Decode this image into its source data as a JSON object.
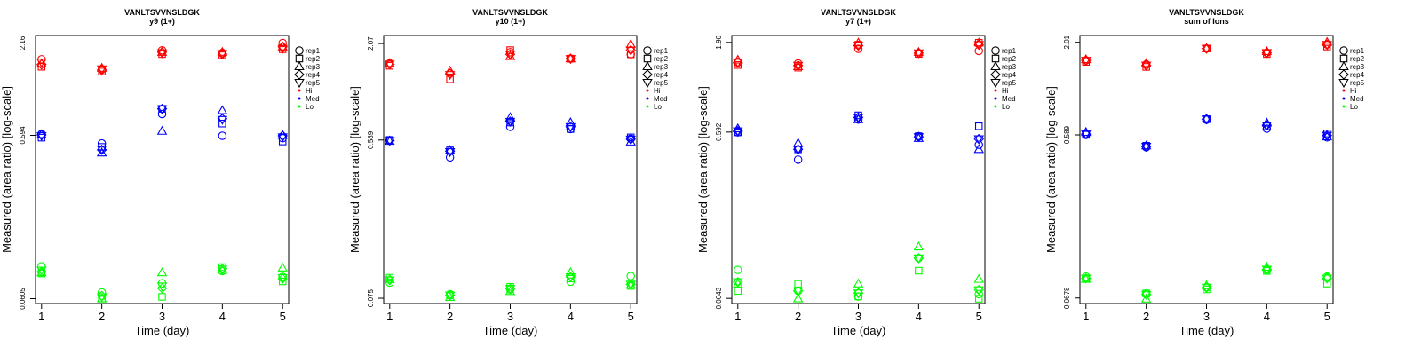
{
  "chart_data": [
    {
      "type": "scatter",
      "title": "VANLTSVVNSLDGK",
      "subtitle": "y9 (1+)",
      "xlabel": "Time (day)",
      "ylabel": "Measured (area ratio) [log-scale]",
      "x": [
        1,
        2,
        3,
        4,
        5
      ],
      "xticks": [
        "1",
        "2",
        "3",
        "4",
        "5"
      ],
      "yticks": [
        {
          "value": 0.0605,
          "label": "0.0605"
        },
        {
          "value": 0.594,
          "label": "0.594"
        },
        {
          "value": 2.16,
          "label": "2.16"
        }
      ],
      "ylim": [
        0.0565,
        2.4
      ],
      "series": [
        {
          "name": "rep1",
          "group": "Hi",
          "values": [
            1.72,
            1.5,
            1.95,
            1.88,
            2.16
          ]
        },
        {
          "name": "rep2",
          "group": "Hi",
          "values": [
            1.55,
            1.45,
            1.85,
            1.82,
            1.98
          ]
        },
        {
          "name": "rep3",
          "group": "Hi",
          "values": [
            1.62,
            1.52,
            1.9,
            1.9,
            2.05
          ]
        },
        {
          "name": "rep4",
          "group": "Hi",
          "values": [
            1.6,
            1.48,
            1.9,
            1.85,
            2.05
          ]
        },
        {
          "name": "rep5",
          "group": "Hi",
          "values": [
            1.65,
            1.5,
            1.88,
            1.86,
            2.0
          ]
        },
        {
          "name": "rep1",
          "group": "Med",
          "values": [
            0.605,
            0.53,
            0.8,
            0.59,
            0.57
          ]
        },
        {
          "name": "rep2",
          "group": "Med",
          "values": [
            0.575,
            0.505,
            0.86,
            0.7,
            0.545
          ]
        },
        {
          "name": "rep3",
          "group": "Med",
          "values": [
            0.6,
            0.465,
            0.63,
            0.84,
            0.595
          ]
        },
        {
          "name": "rep4",
          "group": "Med",
          "values": [
            0.598,
            0.485,
            0.86,
            0.75,
            0.59
          ]
        },
        {
          "name": "rep5",
          "group": "Med",
          "values": [
            0.59,
            0.49,
            0.86,
            0.74,
            0.58
          ]
        },
        {
          "name": "rep1",
          "group": "Lo",
          "values": [
            0.095,
            0.066,
            0.075,
            0.089,
            0.082
          ]
        },
        {
          "name": "rep2",
          "group": "Lo",
          "values": [
            0.086,
            0.0605,
            0.062,
            0.094,
            0.077
          ]
        },
        {
          "name": "rep3",
          "group": "Lo",
          "values": [
            0.087,
            0.0605,
            0.087,
            0.09,
            0.093
          ]
        },
        {
          "name": "rep4",
          "group": "Lo",
          "values": [
            0.088,
            0.063,
            0.07,
            0.092,
            0.08
          ]
        },
        {
          "name": "rep5",
          "group": "Lo",
          "values": [
            0.09,
            0.062,
            0.072,
            0.091,
            0.081
          ]
        }
      ]
    },
    {
      "type": "scatter",
      "title": "VANLTSVVNSLDGK",
      "subtitle": "y10 (1+)",
      "xlabel": "Time (day)",
      "ylabel": "Measured (area ratio) [log-scale]",
      "x": [
        1,
        2,
        3,
        4,
        5
      ],
      "xticks": [
        "1",
        "2",
        "3",
        "4",
        "5"
      ],
      "yticks": [
        {
          "value": 0.075,
          "label": "0.075"
        },
        {
          "value": 0.589,
          "label": "0.589"
        },
        {
          "value": 2.07,
          "label": "2.07"
        }
      ],
      "ylim": [
        0.07,
        2.3
      ],
      "series": [
        {
          "name": "rep1",
          "group": "Hi",
          "values": [
            1.6,
            1.4,
            1.85,
            1.7,
            1.8
          ]
        },
        {
          "name": "rep2",
          "group": "Hi",
          "values": [
            1.55,
            1.3,
            1.9,
            1.7,
            1.8
          ]
        },
        {
          "name": "rep3",
          "group": "Hi",
          "values": [
            1.6,
            1.45,
            1.75,
            1.7,
            2.05
          ]
        },
        {
          "name": "rep4",
          "group": "Hi",
          "values": [
            1.58,
            1.4,
            1.8,
            1.7,
            1.9
          ]
        },
        {
          "name": "rep5",
          "group": "Hi",
          "values": [
            1.58,
            1.38,
            1.8,
            1.7,
            1.9
          ]
        },
        {
          "name": "rep1",
          "group": "Med",
          "values": [
            0.585,
            0.47,
            0.7,
            0.68,
            0.6
          ]
        },
        {
          "name": "rep2",
          "group": "Med",
          "values": [
            0.59,
            0.515,
            0.74,
            0.68,
            0.61
          ]
        },
        {
          "name": "rep3",
          "group": "Med",
          "values": [
            0.58,
            0.515,
            0.79,
            0.74,
            0.575
          ]
        },
        {
          "name": "rep4",
          "group": "Med",
          "values": [
            0.585,
            0.51,
            0.75,
            0.7,
            0.595
          ]
        },
        {
          "name": "rep5",
          "group": "Med",
          "values": [
            0.585,
            0.505,
            0.75,
            0.7,
            0.595
          ]
        },
        {
          "name": "rep1",
          "group": "Lo",
          "values": [
            0.092,
            0.079,
            0.084,
            0.093,
            0.1
          ]
        },
        {
          "name": "rep2",
          "group": "Lo",
          "values": [
            0.098,
            0.078,
            0.087,
            0.097,
            0.088
          ]
        },
        {
          "name": "rep3",
          "group": "Lo",
          "values": [
            0.096,
            0.076,
            0.082,
            0.105,
            0.089
          ]
        },
        {
          "name": "rep4",
          "group": "Lo",
          "values": [
            0.095,
            0.078,
            0.085,
            0.099,
            0.09
          ]
        },
        {
          "name": "rep5",
          "group": "Lo",
          "values": [
            0.095,
            0.078,
            0.085,
            0.099,
            0.09
          ]
        }
      ]
    },
    {
      "type": "scatter",
      "title": "VANLTSVVNSLDGK",
      "subtitle": "y7 (1+)",
      "xlabel": "Time (day)",
      "ylabel": "Measured (area ratio) [log-scale]",
      "x": [
        1,
        2,
        3,
        4,
        5
      ],
      "xticks": [
        "1",
        "2",
        "3",
        "4",
        "5"
      ],
      "yticks": [
        {
          "value": 0.0643,
          "label": "0.0643"
        },
        {
          "value": 0.592,
          "label": "0.592"
        },
        {
          "value": 1.96,
          "label": "1.96"
        }
      ],
      "ylim": [
        0.06,
        2.15
      ],
      "series": [
        {
          "name": "rep1",
          "group": "Hi",
          "values": [
            1.5,
            1.48,
            1.8,
            1.7,
            1.75
          ]
        },
        {
          "name": "rep2",
          "group": "Hi",
          "values": [
            1.45,
            1.4,
            1.9,
            1.68,
            1.95
          ]
        },
        {
          "name": "rep3",
          "group": "Hi",
          "values": [
            1.55,
            1.42,
            1.95,
            1.72,
            1.95
          ]
        },
        {
          "name": "rep4",
          "group": "Hi",
          "values": [
            1.5,
            1.44,
            1.88,
            1.7,
            1.9
          ]
        },
        {
          "name": "rep5",
          "group": "Hi",
          "values": [
            1.5,
            1.44,
            1.88,
            1.7,
            1.9
          ]
        },
        {
          "name": "rep1",
          "group": "Med",
          "values": [
            0.59,
            0.41,
            0.7,
            0.56,
            0.5
          ]
        },
        {
          "name": "rep2",
          "group": "Med",
          "values": [
            0.59,
            0.47,
            0.74,
            0.56,
            0.64
          ]
        },
        {
          "name": "rep3",
          "group": "Med",
          "values": [
            0.62,
            0.51,
            0.7,
            0.545,
            0.47
          ]
        },
        {
          "name": "rep4",
          "group": "Med",
          "values": [
            0.6,
            0.47,
            0.72,
            0.555,
            0.54
          ]
        },
        {
          "name": "rep5",
          "group": "Med",
          "values": [
            0.6,
            0.47,
            0.72,
            0.555,
            0.54
          ]
        },
        {
          "name": "rep1",
          "group": "Lo",
          "values": [
            0.094,
            0.071,
            0.066,
            0.11,
            0.068
          ]
        },
        {
          "name": "rep2",
          "group": "Lo",
          "values": [
            0.071,
            0.078,
            0.066,
            0.093,
            0.064
          ]
        },
        {
          "name": "rep3",
          "group": "Lo",
          "values": [
            0.078,
            0.064,
            0.078,
            0.128,
            0.083
          ]
        },
        {
          "name": "rep4",
          "group": "Lo",
          "values": [
            0.08,
            0.071,
            0.069,
            0.11,
            0.072
          ]
        },
        {
          "name": "rep5",
          "group": "Lo",
          "values": [
            0.08,
            0.071,
            0.069,
            0.11,
            0.072
          ]
        }
      ]
    },
    {
      "type": "scatter",
      "title": "VANLTSVVNSLDGK",
      "subtitle": "sum of Ions",
      "xlabel": "Time (day)",
      "ylabel": "Measured (area ratio) [log-scale]",
      "x": [
        1,
        2,
        3,
        4,
        5
      ],
      "xticks": [
        "1",
        "2",
        "3",
        "4",
        "5"
      ],
      "yticks": [
        {
          "value": 0.0678,
          "label": "0.0678"
        },
        {
          "value": 0.589,
          "label": "0.589"
        },
        {
          "value": 2.01,
          "label": "2.01"
        }
      ],
      "ylim": [
        0.063,
        2.2
      ],
      "series": [
        {
          "name": "rep1",
          "group": "Hi",
          "values": [
            1.58,
            1.5,
            1.85,
            1.75,
            1.95
          ]
        },
        {
          "name": "rep2",
          "group": "Hi",
          "values": [
            1.55,
            1.45,
            1.85,
            1.72,
            1.9
          ]
        },
        {
          "name": "rep3",
          "group": "Hi",
          "values": [
            1.6,
            1.52,
            1.85,
            1.78,
            2.01
          ]
        },
        {
          "name": "rep4",
          "group": "Hi",
          "values": [
            1.58,
            1.48,
            1.85,
            1.75,
            1.95
          ]
        },
        {
          "name": "rep5",
          "group": "Hi",
          "values": [
            1.58,
            1.48,
            1.85,
            1.75,
            1.95
          ]
        },
        {
          "name": "rep1",
          "group": "Med",
          "values": [
            0.59,
            0.5,
            0.72,
            0.64,
            0.57
          ]
        },
        {
          "name": "rep2",
          "group": "Med",
          "values": [
            0.59,
            0.51,
            0.725,
            0.66,
            0.6
          ]
        },
        {
          "name": "rep3",
          "group": "Med",
          "values": [
            0.61,
            0.51,
            0.73,
            0.69,
            0.575
          ]
        },
        {
          "name": "rep4",
          "group": "Med",
          "values": [
            0.595,
            0.505,
            0.725,
            0.67,
            0.585
          ]
        },
        {
          "name": "rep5",
          "group": "Med",
          "values": [
            0.595,
            0.505,
            0.725,
            0.67,
            0.585
          ]
        },
        {
          "name": "rep1",
          "group": "Lo",
          "values": [
            0.09,
            0.072,
            0.078,
            0.098,
            0.09
          ]
        },
        {
          "name": "rep2",
          "group": "Lo",
          "values": [
            0.088,
            0.072,
            0.076,
            0.097,
            0.082
          ]
        },
        {
          "name": "rep3",
          "group": "Lo",
          "values": [
            0.087,
            0.067,
            0.08,
            0.102,
            0.09
          ]
        },
        {
          "name": "rep4",
          "group": "Lo",
          "values": [
            0.088,
            0.071,
            0.078,
            0.099,
            0.088
          ]
        },
        {
          "name": "rep5",
          "group": "Lo",
          "values": [
            0.088,
            0.071,
            0.078,
            0.099,
            0.088
          ]
        }
      ]
    }
  ],
  "legend": {
    "reps": [
      {
        "label": "rep1",
        "symbol": "circle-icon"
      },
      {
        "label": "rep2",
        "symbol": "square-icon"
      },
      {
        "label": "rep3",
        "symbol": "triangle-up-icon"
      },
      {
        "label": "rep4",
        "symbol": "diamond-icon"
      },
      {
        "label": "rep5",
        "symbol": "triangle-down-icon"
      }
    ],
    "groups": [
      {
        "label": "Hi",
        "color": "#ff0000"
      },
      {
        "label": "Med",
        "color": "#0000ff"
      },
      {
        "label": "Lo",
        "color": "#00ff00"
      }
    ]
  }
}
